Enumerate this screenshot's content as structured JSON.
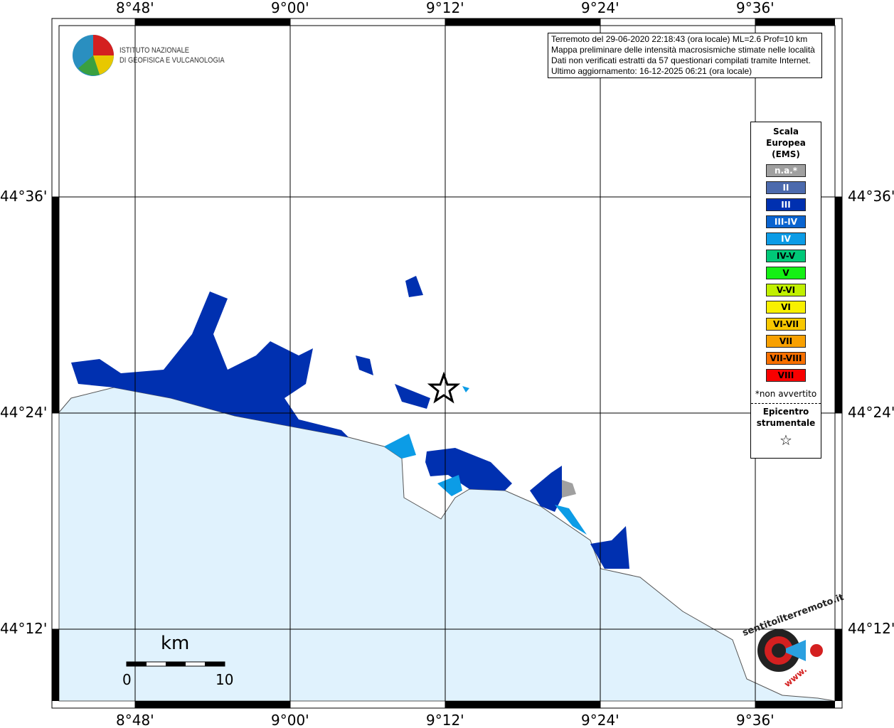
{
  "axes": {
    "x_ticks": [
      "8°48'",
      "9°00'",
      "9°12'",
      "9°24'",
      "9°36'"
    ],
    "y_ticks": [
      "44°36'",
      "44°24'",
      "44°12'"
    ]
  },
  "logo": {
    "line1": "ISTITUTO NAZIONALE",
    "line2": "DI GEOFISICA E VULCANOLOGIA"
  },
  "info": {
    "line1": "Terremoto del 29-06-2020 22:18:43 (ora locale) ML=2.6 Prof=10 km",
    "line2": "Mappa preliminare delle intensità macrosismiche stimate nelle località",
    "line3": "Dati non verificati estratti da 57 questionari compilati tramite Internet.",
    "line4": "Ultimo aggiornamento: 16-12-2025 06:21 (ora locale)"
  },
  "legend": {
    "title_lines": [
      "Scala",
      "Europea",
      "(EMS)"
    ],
    "items": [
      {
        "label": "n.a.*",
        "color": "#a0a0a0",
        "text": "#fff"
      },
      {
        "label": "II",
        "color": "#4c6aad",
        "text": "#fff"
      },
      {
        "label": "III",
        "color": "#0030b0",
        "text": "#fff"
      },
      {
        "label": "III-IV",
        "color": "#0a64d0",
        "text": "#fff"
      },
      {
        "label": "IV",
        "color": "#0c9ce6",
        "text": "#fff"
      },
      {
        "label": "IV-V",
        "color": "#00c878",
        "text": "#000"
      },
      {
        "label": "V",
        "color": "#14f014",
        "text": "#000"
      },
      {
        "label": "V-VI",
        "color": "#c0f000",
        "text": "#000"
      },
      {
        "label": "VI",
        "color": "#f8f000",
        "text": "#000"
      },
      {
        "label": "VI-VII",
        "color": "#f8c800",
        "text": "#000"
      },
      {
        "label": "VII",
        "color": "#f8a000",
        "text": "#000"
      },
      {
        "label": "VII-VIII",
        "color": "#f87000",
        "text": "#000"
      },
      {
        "label": "VIII",
        "color": "#f80000",
        "text": "#000"
      }
    ],
    "footnote": "*non avvertito",
    "epicenter_lines": [
      "Epicentro",
      "strumentale"
    ]
  },
  "scalebar": {
    "unit": "km",
    "min": "0",
    "max": "10"
  },
  "badge": {
    "text": "sentitoilterremoto.it",
    "prefix": "www."
  },
  "colors": {
    "sea": "#e0f2fd",
    "intensity_III": "#0030b0",
    "intensity_IV": "#0c9ce6",
    "na": "#a0a0a0"
  }
}
